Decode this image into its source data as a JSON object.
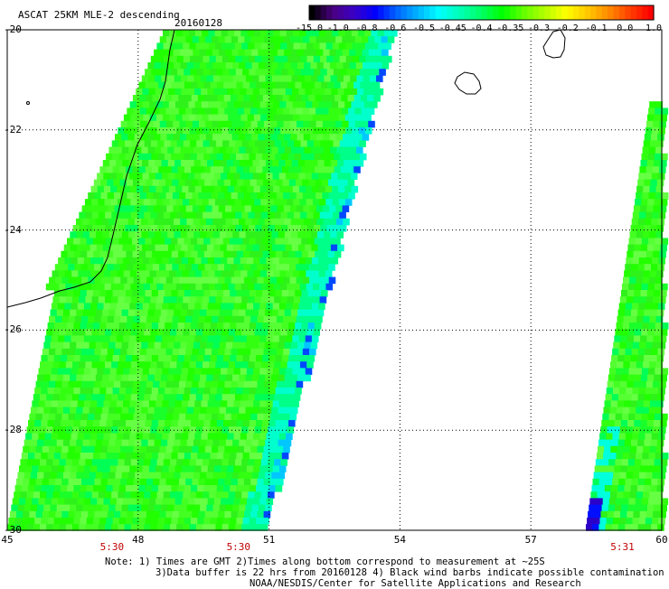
{
  "header": {
    "title": "ASCAT 25KM MLE-2 descending",
    "date": "20160128"
  },
  "colorbar": {
    "labels": [
      "-15.0",
      "-1.0",
      "-0.8",
      "-0.6",
      "-0.5",
      "-0.45",
      "-0.4",
      "-0.35",
      "-0.3",
      "-0.2",
      "-0.1",
      "0.0",
      "1.0"
    ],
    "colors": [
      "#000000",
      "#4b0082",
      "#3a00c8",
      "#0000ff",
      "#0064ff",
      "#00b4ff",
      "#00ffff",
      "#00ffb4",
      "#00ff64",
      "#00ff00",
      "#64ff00",
      "#b4ff00",
      "#ffff00",
      "#ffc800",
      "#ff8c00",
      "#ff4000",
      "#ff0000"
    ]
  },
  "map": {
    "lat_labels": [
      "-20",
      "-22",
      "-24",
      "-26",
      "-28",
      "-30"
    ],
    "lon_labels": [
      "45",
      "48",
      "51",
      "54",
      "57",
      "60"
    ],
    "lat_range": [
      -30,
      -20
    ],
    "lon_range": [
      45,
      60
    ],
    "time_labels": [
      {
        "text": "5:30",
        "lon": 47.4
      },
      {
        "text": "5:30",
        "lon": 50.3
      },
      {
        "text": "5:31",
        "lon": 59.1
      }
    ]
  },
  "notes": [
    "Note: 1) Times are GMT 2)Times along bottom correspond to measurement at ~25S",
    "3)Data buffer is 22 hrs from 20160128 4) Black wind barbs indicate possible contamination",
    "NOAA/NESDIS/Center for Satellite Applications and Research"
  ]
}
